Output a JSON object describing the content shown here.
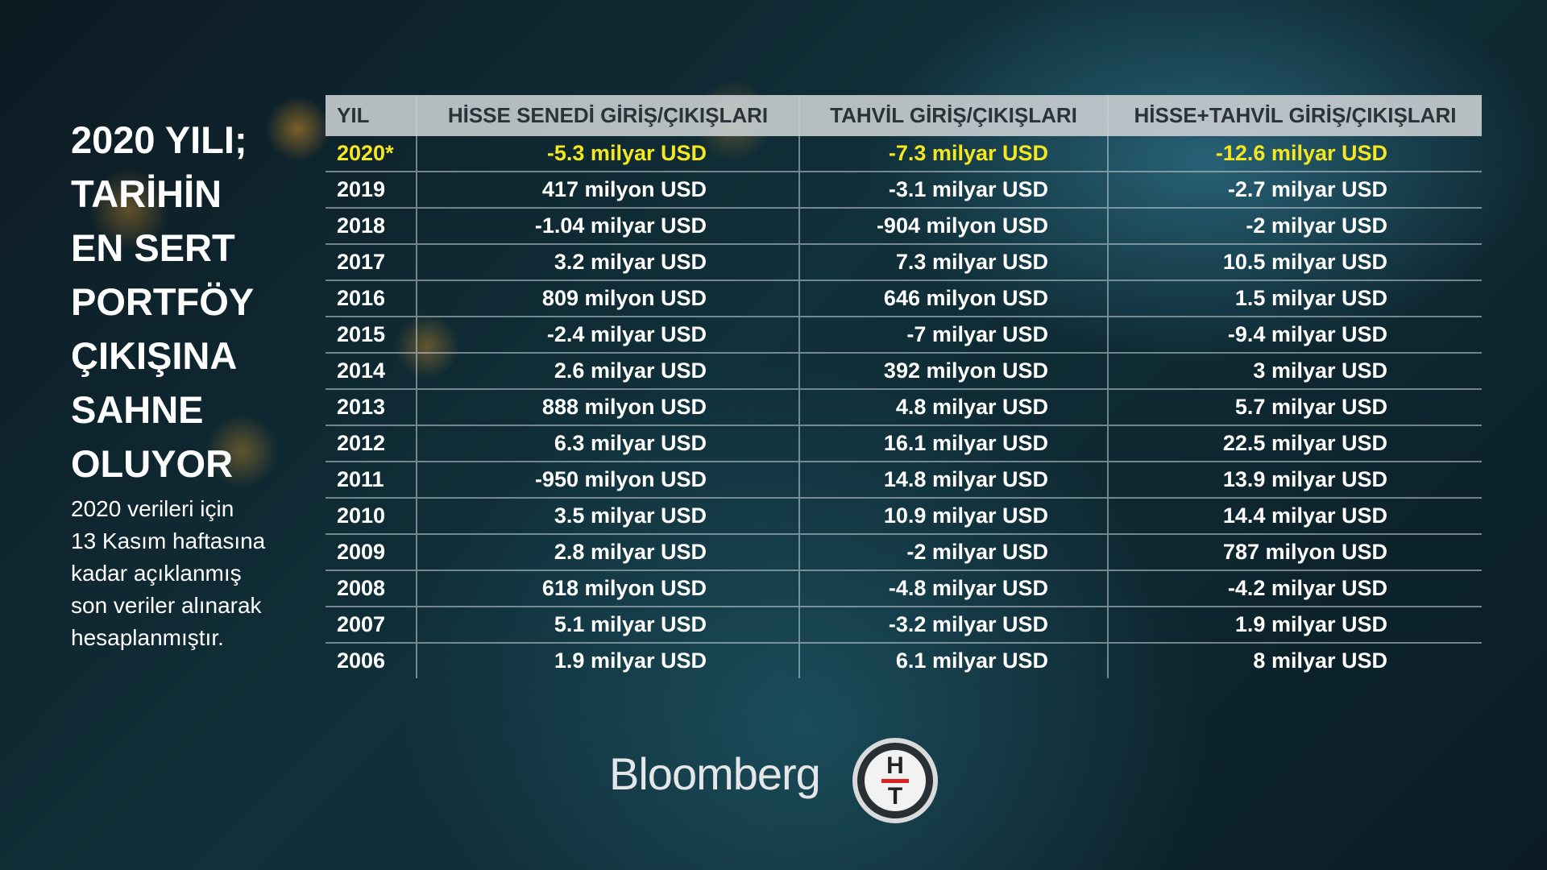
{
  "header": {
    "title_lines": [
      "2020 YILI;",
      "TARİHİN",
      "EN SERT",
      "PORTFÖY",
      "ÇIKIŞINA",
      "SAHNE",
      "OLUYOR"
    ],
    "note_lines": [
      "2020 verileri için",
      "13 Kasım haftasına",
      "kadar açıklanmış",
      "son veriler alınarak",
      "hesaplanmıştır."
    ]
  },
  "table": {
    "columns": [
      "YIL",
      "HİSSE SENEDİ GİRİŞ/ÇIKIŞLARI",
      "TAHVİL GİRİŞ/ÇIKIŞLARI",
      "HİSSE+TAHVİL GİRİŞ/ÇIKIŞLARI"
    ],
    "rows": [
      [
        "2020*",
        "-5.3 milyar USD",
        "-7.3 milyar USD",
        "-12.6 milyar USD"
      ],
      [
        "2019",
        "417 milyon USD",
        "-3.1 milyar USD",
        "-2.7 milyar USD"
      ],
      [
        "2018",
        "-1.04 milyar USD",
        "-904 milyon USD",
        "-2 milyar USD"
      ],
      [
        "2017",
        "3.2 milyar USD",
        "7.3 milyar USD",
        "10.5 milyar USD"
      ],
      [
        "2016",
        "809 milyon USD",
        "646 milyon USD",
        "1.5 milyar USD"
      ],
      [
        "2015",
        "-2.4 milyar USD",
        "-7 milyar USD",
        "-9.4 milyar USD"
      ],
      [
        "2014",
        "2.6 milyar USD",
        "392 milyon USD",
        "3 milyar USD"
      ],
      [
        "2013",
        "888 milyon USD",
        "4.8 milyar USD",
        "5.7 milyar USD"
      ],
      [
        "2012",
        "6.3 milyar USD",
        "16.1 milyar USD",
        "22.5 milyar USD"
      ],
      [
        "2011",
        "-950 milyon USD",
        "14.8 milyar USD",
        "13.9 milyar USD"
      ],
      [
        "2010",
        "3.5 milyar USD",
        "10.9 milyar USD",
        "14.4 milyar USD"
      ],
      [
        "2009",
        "2.8 milyar USD",
        "-2 milyar USD",
        "787 milyon USD"
      ],
      [
        "2008",
        "618 milyon USD",
        "-4.8 milyar USD",
        "-4.2 milyar USD"
      ],
      [
        "2007",
        "5.1 milyar USD",
        "-3.2 milyar USD",
        "1.9 milyar USD"
      ],
      [
        "2006",
        "1.9 milyar USD",
        "6.1 milyar USD",
        "8 milyar USD"
      ]
    ]
  },
  "footer": {
    "logo": "Bloomberg",
    "mark_top": "H",
    "mark_bottom": "T"
  }
}
